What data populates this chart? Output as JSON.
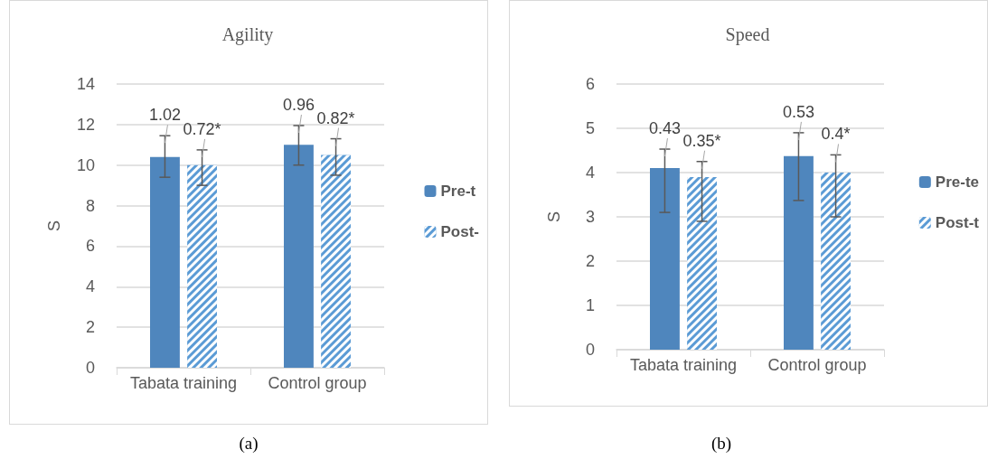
{
  "chart_data": [
    {
      "type": "bar",
      "title": "Agility",
      "ylabel": "S",
      "categories": [
        "Tabata training",
        "Control group"
      ],
      "series": [
        {
          "name": "Pre-t",
          "color": "#4f86bd",
          "values": [
            10.4,
            11.0
          ],
          "errors": [
            [
              9.4,
              11.45
            ],
            [
              10.0,
              11.95
            ]
          ]
        },
        {
          "name": "Post-",
          "color": "#5b9bd5",
          "values": [
            10.0,
            10.5
          ],
          "errors": [
            [
              9.0,
              10.75
            ],
            [
              9.5,
              11.3
            ]
          ]
        }
      ],
      "ylim": [
        0,
        14
      ],
      "yticks": [
        0,
        2,
        4,
        6,
        8,
        10,
        12,
        14
      ],
      "grid": "y",
      "legend": "right",
      "annotations": [
        {
          "text": "1.02",
          "x": "Tabata training",
          "y": 10.4
        },
        {
          "text": "0.72*",
          "x": "Tabata training",
          "y": 10.0
        },
        {
          "text": "0.96",
          "x": "Control group",
          "y": 11.0
        },
        {
          "text": "0.82*",
          "x": "Control group",
          "y": 10.5
        },
        "(a)"
      ]
    },
    {
      "type": "bar",
      "title": "Speed",
      "ylabel": "S",
      "categories": [
        "Tabata training",
        "Control group"
      ],
      "series": [
        {
          "name": "Pre-te",
          "color": "#4f86bd",
          "values": [
            4.1,
            4.37
          ],
          "errors": [
            [
              3.1,
              4.53
            ],
            [
              3.37,
              4.9
            ]
          ]
        },
        {
          "name": "Post-t",
          "color": "#5b9bd5",
          "values": [
            3.9,
            4.0
          ],
          "errors": [
            [
              2.9,
              4.25
            ],
            [
              3.0,
              4.4
            ]
          ]
        }
      ],
      "ylim": [
        0,
        6
      ],
      "yticks": [
        0,
        1,
        2,
        3,
        4,
        5,
        6
      ],
      "grid": "y",
      "legend": "right",
      "annotations": [
        {
          "text": "0.43",
          "x": "Tabata training",
          "y": 4.1
        },
        {
          "text": "0.35*",
          "x": "Tabata training",
          "y": 3.9
        },
        {
          "text": "0.53",
          "x": "Control group",
          "y": 4.37
        },
        {
          "text": "0.4*",
          "x": "Control group",
          "y": 4.0
        },
        "(b)"
      ]
    }
  ]
}
